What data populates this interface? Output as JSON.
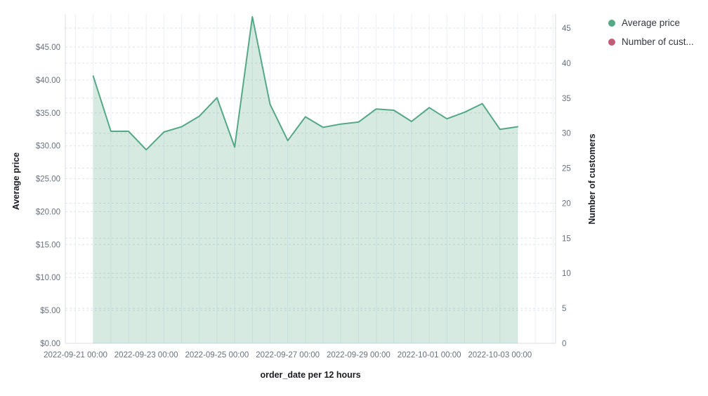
{
  "chart_data": {
    "type": "area",
    "title": "",
    "xlabel": "order_date per 12 hours",
    "grid": "on",
    "legend_position": "top-right",
    "left_axis": {
      "label": "Average price",
      "tick_labels": [
        "$0.00",
        "$5.00",
        "$10.00",
        "$15.00",
        "$20.00",
        "$25.00",
        "$30.00",
        "$35.00",
        "$40.00",
        "$45.00"
      ],
      "tick_values": [
        0,
        5,
        10,
        15,
        20,
        25,
        30,
        35,
        40,
        45
      ],
      "range": [
        0,
        50
      ]
    },
    "right_axis": {
      "label": "Number of customers",
      "tick_labels": [
        "0",
        "5",
        "10",
        "15",
        "20",
        "25",
        "30",
        "35",
        "40",
        "45"
      ],
      "tick_values": [
        0,
        5,
        10,
        15,
        20,
        25,
        30,
        35,
        40,
        45
      ],
      "range": [
        0,
        47
      ]
    },
    "x_axis": {
      "tick_labels": [
        "2022-09-21 00:00",
        "2022-09-23 00:00",
        "2022-09-25 00:00",
        "2022-09-27 00:00",
        "2022-09-29 00:00",
        "2022-10-01 00:00",
        "2022-10-03 00:00"
      ],
      "bucket_interval": "12 hours"
    },
    "series": [
      {
        "name": "Average price",
        "type": "area",
        "axis": "left",
        "color": "#55a886",
        "fill_opacity": 0.24,
        "x": [
          "2022-09-21 12:00",
          "2022-09-22 00:00",
          "2022-09-22 12:00",
          "2022-09-23 00:00",
          "2022-09-23 12:00",
          "2022-09-24 00:00",
          "2022-09-24 12:00",
          "2022-09-25 00:00",
          "2022-09-25 12:00",
          "2022-09-26 00:00",
          "2022-09-26 12:00",
          "2022-09-27 00:00",
          "2022-09-27 12:00",
          "2022-09-28 00:00",
          "2022-09-28 12:00",
          "2022-09-29 00:00",
          "2022-09-29 12:00",
          "2022-09-30 00:00",
          "2022-09-30 12:00",
          "2022-10-01 00:00",
          "2022-10-01 12:00",
          "2022-10-02 00:00",
          "2022-10-02 12:00",
          "2022-10-03 00:00",
          "2022-10-03 12:00"
        ],
        "values": [
          40.6,
          32.2,
          32.2,
          29.4,
          32.1,
          32.9,
          34.5,
          37.3,
          29.8,
          49.6,
          36.3,
          30.8,
          34.4,
          32.8,
          33.3,
          33.6,
          35.6,
          35.4,
          33.7,
          35.8,
          34.1,
          35.1,
          36.4,
          32.5,
          32.9
        ]
      },
      {
        "name": "Number of customers",
        "type": "line",
        "axis": "right",
        "color": "#c55a76",
        "x": [],
        "values": []
      }
    ]
  },
  "legend": {
    "items": [
      {
        "label": "Average price",
        "color": "#55a886"
      },
      {
        "label": "Number of cust...",
        "color": "#c55a76"
      }
    ]
  },
  "style": {
    "background": "#ffffff",
    "grid_vertical_color": "#edf0f5",
    "grid_dashed_color": "#dde3ea",
    "axis_line_color": "#d8dee8",
    "tick_text_color": "#69707d",
    "title_text_color": "#1a1c21"
  }
}
